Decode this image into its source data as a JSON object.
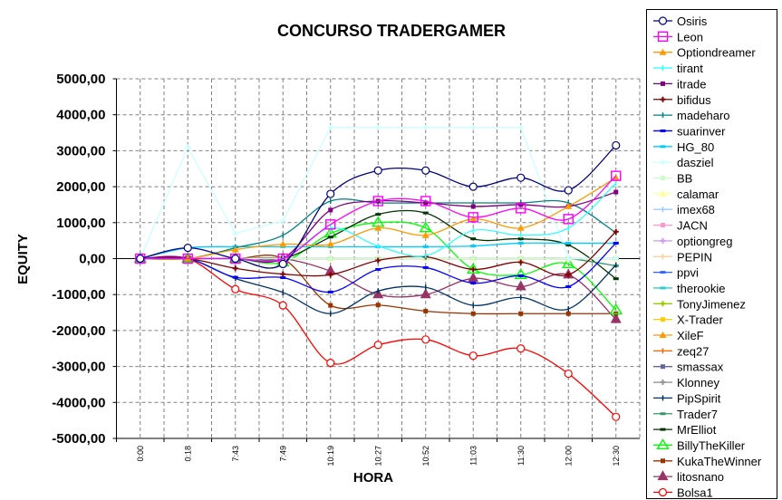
{
  "chart_data": {
    "type": "line",
    "title": "CONCURSO TRADERGAMER",
    "xlabel": "HORA",
    "ylabel": "EQUITY",
    "ylim": [
      -5000,
      5000
    ],
    "ytick_step": 1000,
    "ytick_labels": [
      "5000,00",
      "4000,00",
      "3000,00",
      "2000,00",
      "1000,00",
      "0,00",
      "-1000,00",
      "-2000,00",
      "-3000,00",
      "-4000,00",
      "-5000,00"
    ],
    "grid": true,
    "legend": "right",
    "categories": [
      "0:00",
      "0:18",
      "7:43",
      "7:49",
      "10:19",
      "10:27",
      "10:52",
      "11:03",
      "11:30",
      "12:00",
      "12:30"
    ],
    "series": [
      {
        "name": "Osiris",
        "color": "#000080",
        "marker": "circle-open",
        "values": [
          0,
          300,
          0,
          -150,
          1800,
          2450,
          2450,
          2000,
          2250,
          1900,
          3150
        ]
      },
      {
        "name": "Leon",
        "color": "#FF00FF",
        "marker": "square-open",
        "values": [
          0,
          0,
          0,
          0,
          950,
          1600,
          1600,
          1150,
          1400,
          1100,
          2300
        ]
      },
      {
        "name": "Optiondreamer",
        "color": "#FF9900",
        "marker": "triangle",
        "values": [
          0,
          0,
          250,
          400,
          400,
          850,
          650,
          1100,
          850,
          1450,
          2250
        ]
      },
      {
        "name": "tirant",
        "color": "#33FFFF",
        "marker": "tick",
        "values": [
          0,
          0,
          0,
          0,
          850,
          350,
          80,
          780,
          650,
          850,
          2100
        ]
      },
      {
        "name": "itrade",
        "color": "#800080",
        "marker": "square",
        "values": [
          0,
          0,
          0,
          0,
          1350,
          1600,
          1550,
          1450,
          1500,
          1450,
          1850
        ]
      },
      {
        "name": "bifidus",
        "color": "#800000",
        "marker": "plus",
        "values": [
          0,
          0,
          -270,
          -430,
          -450,
          -50,
          50,
          -300,
          -100,
          -450,
          750
        ]
      },
      {
        "name": "madeharo",
        "color": "#008080",
        "marker": "tick",
        "values": [
          0,
          0,
          300,
          650,
          1600,
          1550,
          1550,
          1550,
          1550,
          1550,
          720
        ]
      },
      {
        "name": "suarinver",
        "color": "#0000FF",
        "marker": "dash",
        "values": [
          0,
          0,
          -520,
          -530,
          -930,
          -300,
          -250,
          -680,
          -480,
          -780,
          430
        ]
      },
      {
        "name": "HG_80",
        "color": "#00CCFF",
        "marker": "dash",
        "values": [
          0,
          300,
          330,
          330,
          330,
          330,
          330,
          350,
          430,
          430,
          430
        ]
      },
      {
        "name": "dasziel",
        "color": "#CCFFFF",
        "marker": "plus",
        "straight": true,
        "values": [
          0,
          3100,
          700,
          1050,
          3650,
          3650,
          3650,
          3650,
          3650,
          0,
          0
        ]
      },
      {
        "name": "BB",
        "color": "#CCFFCC",
        "marker": "square",
        "values": [
          0,
          0,
          0,
          0,
          0,
          0,
          0,
          0,
          0,
          0,
          0
        ]
      },
      {
        "name": "calamar",
        "color": "#FFFF99",
        "marker": "triangle",
        "values": [
          0,
          0,
          0,
          0,
          0,
          0,
          0,
          0,
          0,
          0,
          0
        ]
      },
      {
        "name": "imex68",
        "color": "#99CCFF",
        "marker": "tick",
        "values": [
          0,
          0,
          0,
          0,
          0,
          0,
          0,
          0,
          0,
          0,
          0
        ]
      },
      {
        "name": "JACN",
        "color": "#FF99CC",
        "marker": "square",
        "values": [
          0,
          0,
          0,
          0,
          0,
          0,
          0,
          0,
          0,
          0,
          0
        ]
      },
      {
        "name": "optiongreg",
        "color": "#CC99FF",
        "marker": "plus",
        "values": [
          0,
          0,
          0,
          0,
          0,
          0,
          0,
          0,
          0,
          0,
          0
        ]
      },
      {
        "name": "PEPIN",
        "color": "#FFCC99",
        "marker": "tick",
        "values": [
          0,
          0,
          0,
          0,
          0,
          0,
          0,
          0,
          0,
          0,
          0
        ]
      },
      {
        "name": "ppvi",
        "color": "#3366FF",
        "marker": "dash",
        "values": [
          0,
          0,
          0,
          0,
          0,
          0,
          0,
          0,
          0,
          0,
          0
        ]
      },
      {
        "name": "therookie",
        "color": "#33CCCC",
        "marker": "dash",
        "values": [
          0,
          0,
          0,
          0,
          0,
          0,
          0,
          0,
          0,
          0,
          0
        ]
      },
      {
        "name": "TonyJimenez",
        "color": "#99CC00",
        "marker": "plus",
        "values": [
          0,
          0,
          0,
          0,
          0,
          0,
          0,
          0,
          0,
          0,
          0
        ]
      },
      {
        "name": "X-Trader",
        "color": "#FFCC00",
        "marker": "square",
        "values": [
          0,
          0,
          0,
          0,
          0,
          0,
          0,
          0,
          0,
          0,
          0
        ]
      },
      {
        "name": "XileF",
        "color": "#FF9900",
        "marker": "triangle",
        "values": [
          0,
          0,
          0,
          0,
          0,
          0,
          0,
          0,
          0,
          0,
          0
        ]
      },
      {
        "name": "zeq27",
        "color": "#FF6600",
        "marker": "tick",
        "values": [
          0,
          0,
          0,
          0,
          0,
          0,
          0,
          0,
          0,
          0,
          0
        ]
      },
      {
        "name": "smassax",
        "color": "#666699",
        "marker": "square",
        "values": [
          0,
          0,
          0,
          0,
          0,
          0,
          0,
          0,
          0,
          0,
          0
        ]
      },
      {
        "name": "Klonney",
        "color": "#969696",
        "marker": "plus",
        "values": [
          0,
          0,
          0,
          0,
          0,
          0,
          0,
          0,
          0,
          0,
          0
        ]
      },
      {
        "name": "PipSpirit",
        "color": "#003366",
        "marker": "tick",
        "values": [
          0,
          0,
          -550,
          -940,
          -1530,
          -900,
          -800,
          -1300,
          -1080,
          -1400,
          -180
        ]
      },
      {
        "name": "Trader7",
        "color": "#339966",
        "marker": "dash",
        "values": [
          0,
          0,
          0,
          0,
          0,
          0,
          0,
          0,
          0,
          0,
          -200
        ]
      },
      {
        "name": "MrElliot",
        "color": "#003300",
        "marker": "dash",
        "values": [
          0,
          0,
          0,
          0,
          600,
          1230,
          1270,
          550,
          550,
          380,
          -560
        ]
      },
      {
        "name": "BillyTheKiller",
        "color": "#00FF00",
        "marker": "triangle-open",
        "values": [
          0,
          0,
          0,
          -100,
          700,
          1000,
          850,
          -300,
          -450,
          -150,
          -1430
        ]
      },
      {
        "name": "KukaTheWinner",
        "color": "#993300",
        "marker": "square",
        "values": [
          0,
          0,
          0,
          0,
          -1300,
          -1290,
          -1460,
          -1530,
          -1530,
          -1530,
          -1530
        ]
      },
      {
        "name": "litosnano",
        "color": "#993366",
        "marker": "triangle-big",
        "values": [
          0,
          0,
          0,
          0,
          -350,
          -1000,
          -1000,
          -550,
          -780,
          -450,
          -1690
        ]
      },
      {
        "name": "Bolsa1",
        "color": "#FF0000",
        "marker": "circle-open",
        "values": [
          0,
          0,
          -850,
          -1300,
          -2900,
          -2400,
          -2250,
          -2700,
          -2500,
          -3200,
          -4400
        ]
      }
    ]
  }
}
